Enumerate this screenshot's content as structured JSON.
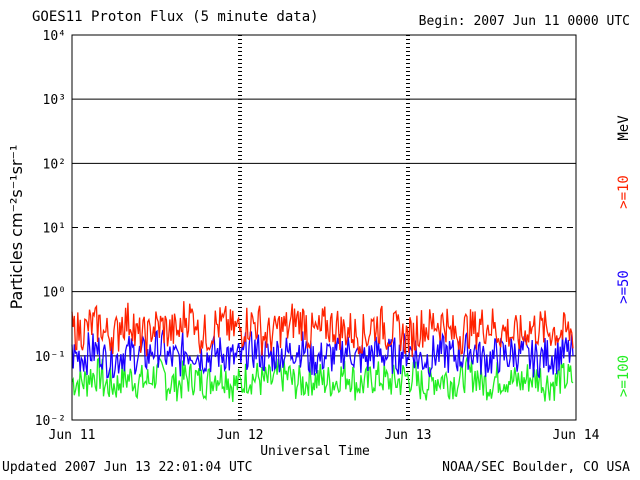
{
  "header": {
    "title": "GOES11 Proton Flux (5 minute data)",
    "begin": "Begin: 2007 Jun 11 0000 UTC"
  },
  "footer": {
    "updated": "Updated 2007 Jun 13 22:01:04 UTC",
    "credit": "NOAA/SEC Boulder, CO USA"
  },
  "chart_data": {
    "type": "line",
    "title": "GOES11 Proton Flux (5 minute data)",
    "xlabel": "Universal Time",
    "ylabel": "Particles cm⁻²s⁻¹sr⁻¹",
    "y_scale": "log",
    "ylim": [
      0.01,
      10000
    ],
    "y_tick_labels": [
      "10⁻²",
      "10⁻¹",
      "10⁰",
      "10¹",
      "10²",
      "10³",
      "10⁴"
    ],
    "x_tick_labels": [
      "Jun 11",
      "Jun 12",
      "Jun 13",
      "Jun 14"
    ],
    "grid": true,
    "legend_unit": "MeV",
    "series": [
      {
        "name": ">=10",
        "color": "#ff2200",
        "values": [
          0.25,
          0.3,
          0.22,
          0.35,
          0.2,
          0.28,
          0.24,
          0.4,
          0.22,
          0.3,
          0.26,
          0.32,
          0.21,
          0.27,
          0.35,
          0.23,
          0.29,
          0.25,
          0.22,
          0.3,
          0.24,
          0.2,
          0.28,
          0.33,
          0.22,
          0.26,
          0.3,
          0.24,
          0.21,
          0.27,
          0.25,
          0.23
        ]
      },
      {
        "name": ">=50",
        "color": "#1a00ff",
        "values": [
          0.1,
          0.12,
          0.09,
          0.11,
          0.1,
          0.13,
          0.09,
          0.12,
          0.1,
          0.11,
          0.09,
          0.12,
          0.1,
          0.11,
          0.13,
          0.09,
          0.1,
          0.12,
          0.09,
          0.11,
          0.1,
          0.12,
          0.09,
          0.11,
          0.1,
          0.12,
          0.09,
          0.1,
          0.11,
          0.09,
          0.1,
          0.11
        ]
      },
      {
        "name": ">=100",
        "color": "#22ee22",
        "values": [
          0.04,
          0.05,
          0.035,
          0.045,
          0.04,
          0.05,
          0.037,
          0.045,
          0.04,
          0.05,
          0.036,
          0.046,
          0.04,
          0.048,
          0.038,
          0.044,
          0.04,
          0.05,
          0.037,
          0.045,
          0.04,
          0.047,
          0.036,
          0.044,
          0.04,
          0.05,
          0.038,
          0.045,
          0.04,
          0.046,
          0.037,
          0.044
        ]
      }
    ]
  }
}
